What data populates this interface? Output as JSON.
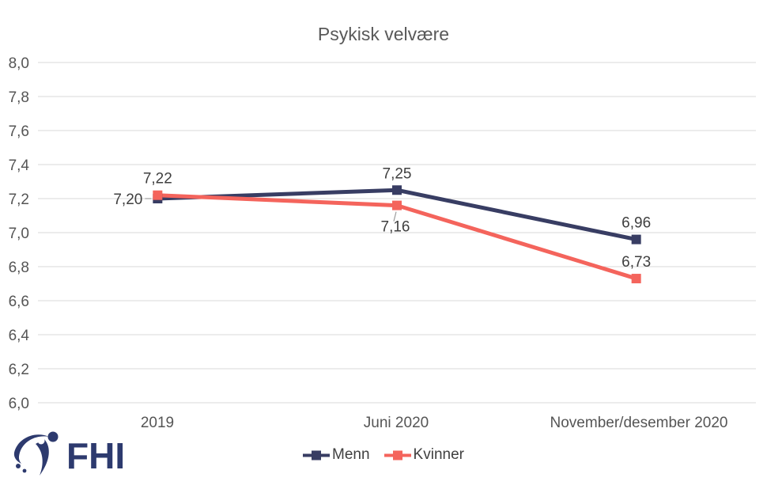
{
  "title": "Psykisk velvære",
  "logo": {
    "text": "FHI"
  },
  "colors": {
    "menn": "#383d63",
    "kvinner": "#f4645c",
    "gridline": "#d9d9d9",
    "axis_text": "#555555",
    "data_label": "#3f3f3f",
    "title_text": "#595959",
    "leader_line": "#9e9e9e",
    "logo_navy": "#2d3a6e",
    "background": "#ffffff"
  },
  "chart_data": {
    "type": "line",
    "title": "Psykisk velvære",
    "categories": [
      "2019",
      "Juni 2020",
      "November/desember 2020"
    ],
    "series": [
      {
        "name": "Menn",
        "color": "#383d63",
        "values": [
          7.2,
          7.25,
          6.96
        ],
        "point_labels": [
          "7,20",
          "7,25",
          "6,96"
        ],
        "label_positions": [
          "left",
          "above",
          "above"
        ]
      },
      {
        "name": "Kvinner",
        "color": "#f4645c",
        "values": [
          7.22,
          7.16,
          6.73
        ],
        "point_labels": [
          "7,22",
          "7,16",
          "6,73"
        ],
        "label_positions": [
          "above",
          "below",
          "above"
        ]
      }
    ],
    "xlabel": "",
    "ylabel": "",
    "ylim": [
      6.0,
      8.0
    ],
    "y_step": 0.2,
    "y_tick_labels": [
      "8,0",
      "7,8",
      "7,6",
      "7,4",
      "7,2",
      "7,0",
      "6,8",
      "6,6",
      "6,4",
      "6,2",
      "6,0"
    ],
    "decimal_separator": ",",
    "grid": "horizontal",
    "legend_position": "bottom",
    "marker": "square"
  }
}
